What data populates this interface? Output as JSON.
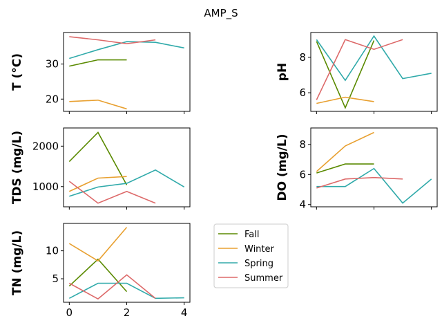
{
  "chart_data": {
    "type": "line",
    "title": "AMP_S",
    "legend_position": "center",
    "x_ticks": [
      0,
      2,
      4
    ],
    "series_meta": [
      {
        "name": "Fall",
        "color": "#5a8a00"
      },
      {
        "name": "Winter",
        "color": "#e8a030"
      },
      {
        "name": "Spring",
        "color": "#30aaaa"
      },
      {
        "name": "Summer",
        "color": "#dd6a6a"
      }
    ],
    "panels": [
      {
        "id": "T",
        "ylabel": "T  (°C)",
        "xlim": [
          -0.2,
          4.2
        ],
        "ylim": [
          16.5,
          39.0
        ],
        "yticks": [
          20,
          30
        ],
        "show_xticklabels": false,
        "series": [
          {
            "name": "Fall",
            "x": [
              0,
              1,
              2
            ],
            "y": [
              29.4,
              31.2,
              31.2
            ]
          },
          {
            "name": "Winter",
            "x": [
              0,
              1,
              2
            ],
            "y": [
              19.3,
              19.7,
              17.2
            ]
          },
          {
            "name": "Spring",
            "x": [
              0,
              1,
              2,
              3,
              4
            ],
            "y": [
              31.6,
              34.1,
              36.4,
              36.2,
              34.6
            ]
          },
          {
            "name": "Summer",
            "x": [
              0,
              1,
              2,
              3
            ],
            "y": [
              37.8,
              36.9,
              35.8,
              36.9
            ]
          }
        ]
      },
      {
        "id": "pH",
        "ylabel": "pH",
        "xlim": [
          -0.2,
          4.2
        ],
        "ylim": [
          4.95,
          9.4
        ],
        "yticks": [
          6,
          8
        ],
        "show_xticklabels": false,
        "series": [
          {
            "name": "Fall",
            "x": [
              0,
              1,
              2
            ],
            "y": [
              8.9,
              5.15,
              8.95
            ]
          },
          {
            "name": "Winter",
            "x": [
              0,
              1,
              2
            ],
            "y": [
              5.4,
              5.75,
              5.5
            ]
          },
          {
            "name": "Spring",
            "x": [
              0,
              1,
              2,
              3,
              4
            ],
            "y": [
              9.0,
              6.7,
              9.2,
              6.8,
              7.1
            ]
          },
          {
            "name": "Summer",
            "x": [
              0,
              1,
              2,
              3
            ],
            "y": [
              5.6,
              9.0,
              8.45,
              9.0
            ]
          }
        ]
      },
      {
        "id": "TDS",
        "ylabel": "TDS (mg/L)",
        "xlim": [
          -0.2,
          4.2
        ],
        "ylim": [
          500,
          2450
        ],
        "yticks": [
          1000,
          2000
        ],
        "show_xticklabels": false,
        "series": [
          {
            "name": "Fall",
            "x": [
              0,
              1,
              2
            ],
            "y": [
              1620,
              2340,
              1040
            ]
          },
          {
            "name": "Winter",
            "x": [
              0,
              1,
              2
            ],
            "y": [
              880,
              1210,
              1250
            ]
          },
          {
            "name": "Spring",
            "x": [
              0,
              1,
              2,
              3,
              4
            ],
            "y": [
              760,
              990,
              1080,
              1410,
              990
            ]
          },
          {
            "name": "Summer",
            "x": [
              0,
              1,
              2,
              3
            ],
            "y": [
              1130,
              590,
              880,
              590
            ]
          }
        ]
      },
      {
        "id": "DO",
        "ylabel": "DO (mg/L)",
        "xlim": [
          -0.2,
          4.2
        ],
        "ylim": [
          3.85,
          9.1
        ],
        "yticks": [
          4,
          6,
          8
        ],
        "show_xticklabels": false,
        "series": [
          {
            "name": "Fall",
            "x": [
              0,
              1,
              2
            ],
            "y": [
              6.1,
              6.7,
              6.7
            ]
          },
          {
            "name": "Winter",
            "x": [
              0,
              1,
              2
            ],
            "y": [
              6.2,
              7.9,
              8.8
            ]
          },
          {
            "name": "Spring",
            "x": [
              0,
              1,
              2,
              3,
              4
            ],
            "y": [
              5.2,
              5.2,
              6.4,
              4.1,
              5.7
            ]
          },
          {
            "name": "Summer",
            "x": [
              0,
              1,
              2,
              3
            ],
            "y": [
              5.1,
              5.7,
              5.8,
              5.7
            ]
          }
        ]
      },
      {
        "id": "TN",
        "ylabel": "TN (mg/L)",
        "xlim": [
          -0.2,
          4.2
        ],
        "ylim": [
          0.8,
          14.9
        ],
        "yticks": [
          5,
          10
        ],
        "show_xticklabels": true,
        "series": [
          {
            "name": "Fall",
            "x": [
              0,
              1,
              2
            ],
            "y": [
              3.7,
              8.5,
              2.7
            ]
          },
          {
            "name": "Winter",
            "x": [
              0,
              1,
              2
            ],
            "y": [
              11.3,
              8.2,
              14.2
            ]
          },
          {
            "name": "Spring",
            "x": [
              0,
              1,
              2,
              3,
              4
            ],
            "y": [
              1.5,
              4.2,
              4.2,
              1.5,
              1.6
            ]
          },
          {
            "name": "Summer",
            "x": [
              0,
              1,
              2,
              3
            ],
            "y": [
              4.2,
              1.4,
              5.7,
              1.5
            ]
          }
        ]
      }
    ]
  }
}
